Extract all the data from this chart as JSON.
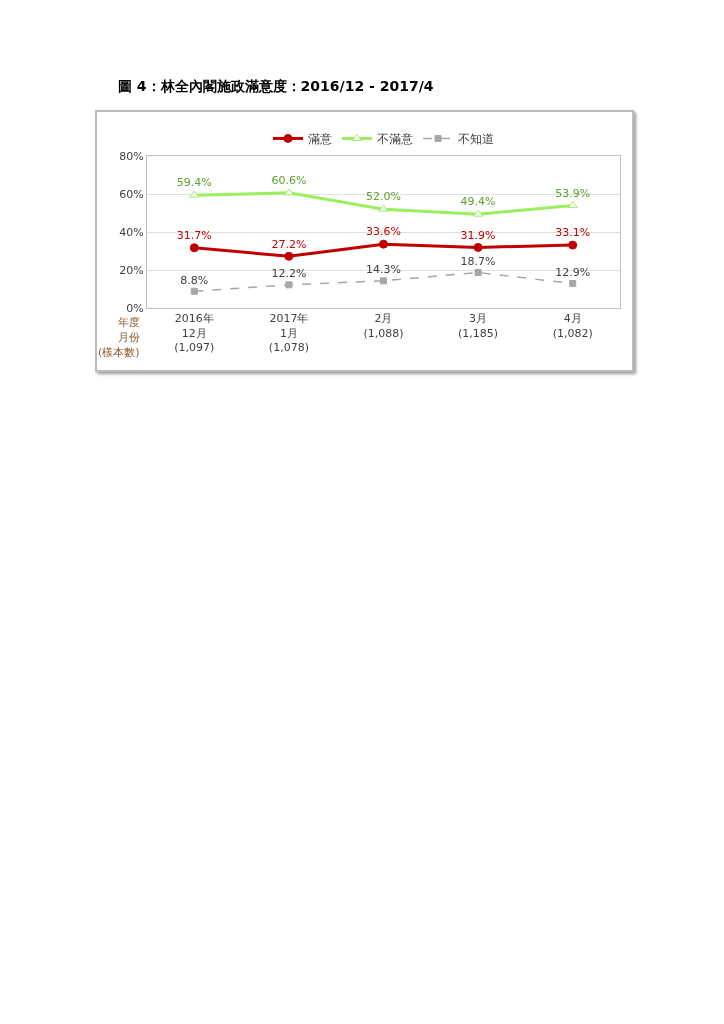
{
  "chart_data": {
    "type": "line",
    "title": "圖 4：林全內閣施政滿意度：2016/12 - 2017/4",
    "categories": [
      "2016年\n12月\n(1,097)",
      "2017年\n1月\n(1,078)",
      "2月\n(1,088)",
      "3月\n(1,185)",
      "4月\n(1,082)"
    ],
    "series": [
      {
        "name": "滿意",
        "color": "#c00000",
        "marker": "circle",
        "line_style": "solid",
        "values": [
          31.7,
          27.2,
          33.6,
          31.9,
          33.1
        ],
        "value_labels": [
          "31.7%",
          "27.2%",
          "33.6%",
          "31.9%",
          "33.1%"
        ]
      },
      {
        "name": "不滿意",
        "color": "#99f05a",
        "marker": "triangle",
        "line_style": "solid",
        "values": [
          59.4,
          60.6,
          52.0,
          49.4,
          53.9
        ],
        "value_labels": [
          "59.4%",
          "60.6%",
          "52.0%",
          "49.4%",
          "53.9%"
        ]
      },
      {
        "name": "不知道",
        "color": "#a6a6a6",
        "marker": "square",
        "line_style": "dashed",
        "values": [
          8.8,
          12.2,
          14.3,
          18.7,
          12.9
        ],
        "value_labels": [
          "8.8%",
          "12.2%",
          "14.3%",
          "18.7%",
          "12.9%"
        ]
      }
    ],
    "annotations": [
      "年度",
      "月份",
      "(樣本數)"
    ],
    "ylim": [
      0,
      80
    ],
    "yticks": [
      {
        "value": 0,
        "label": "0%"
      },
      {
        "value": 20,
        "label": "20%"
      },
      {
        "value": 40,
        "label": "40%"
      },
      {
        "value": 60,
        "label": "60%"
      },
      {
        "value": 80,
        "label": "80%"
      }
    ],
    "grid": "y",
    "legend": "top"
  }
}
